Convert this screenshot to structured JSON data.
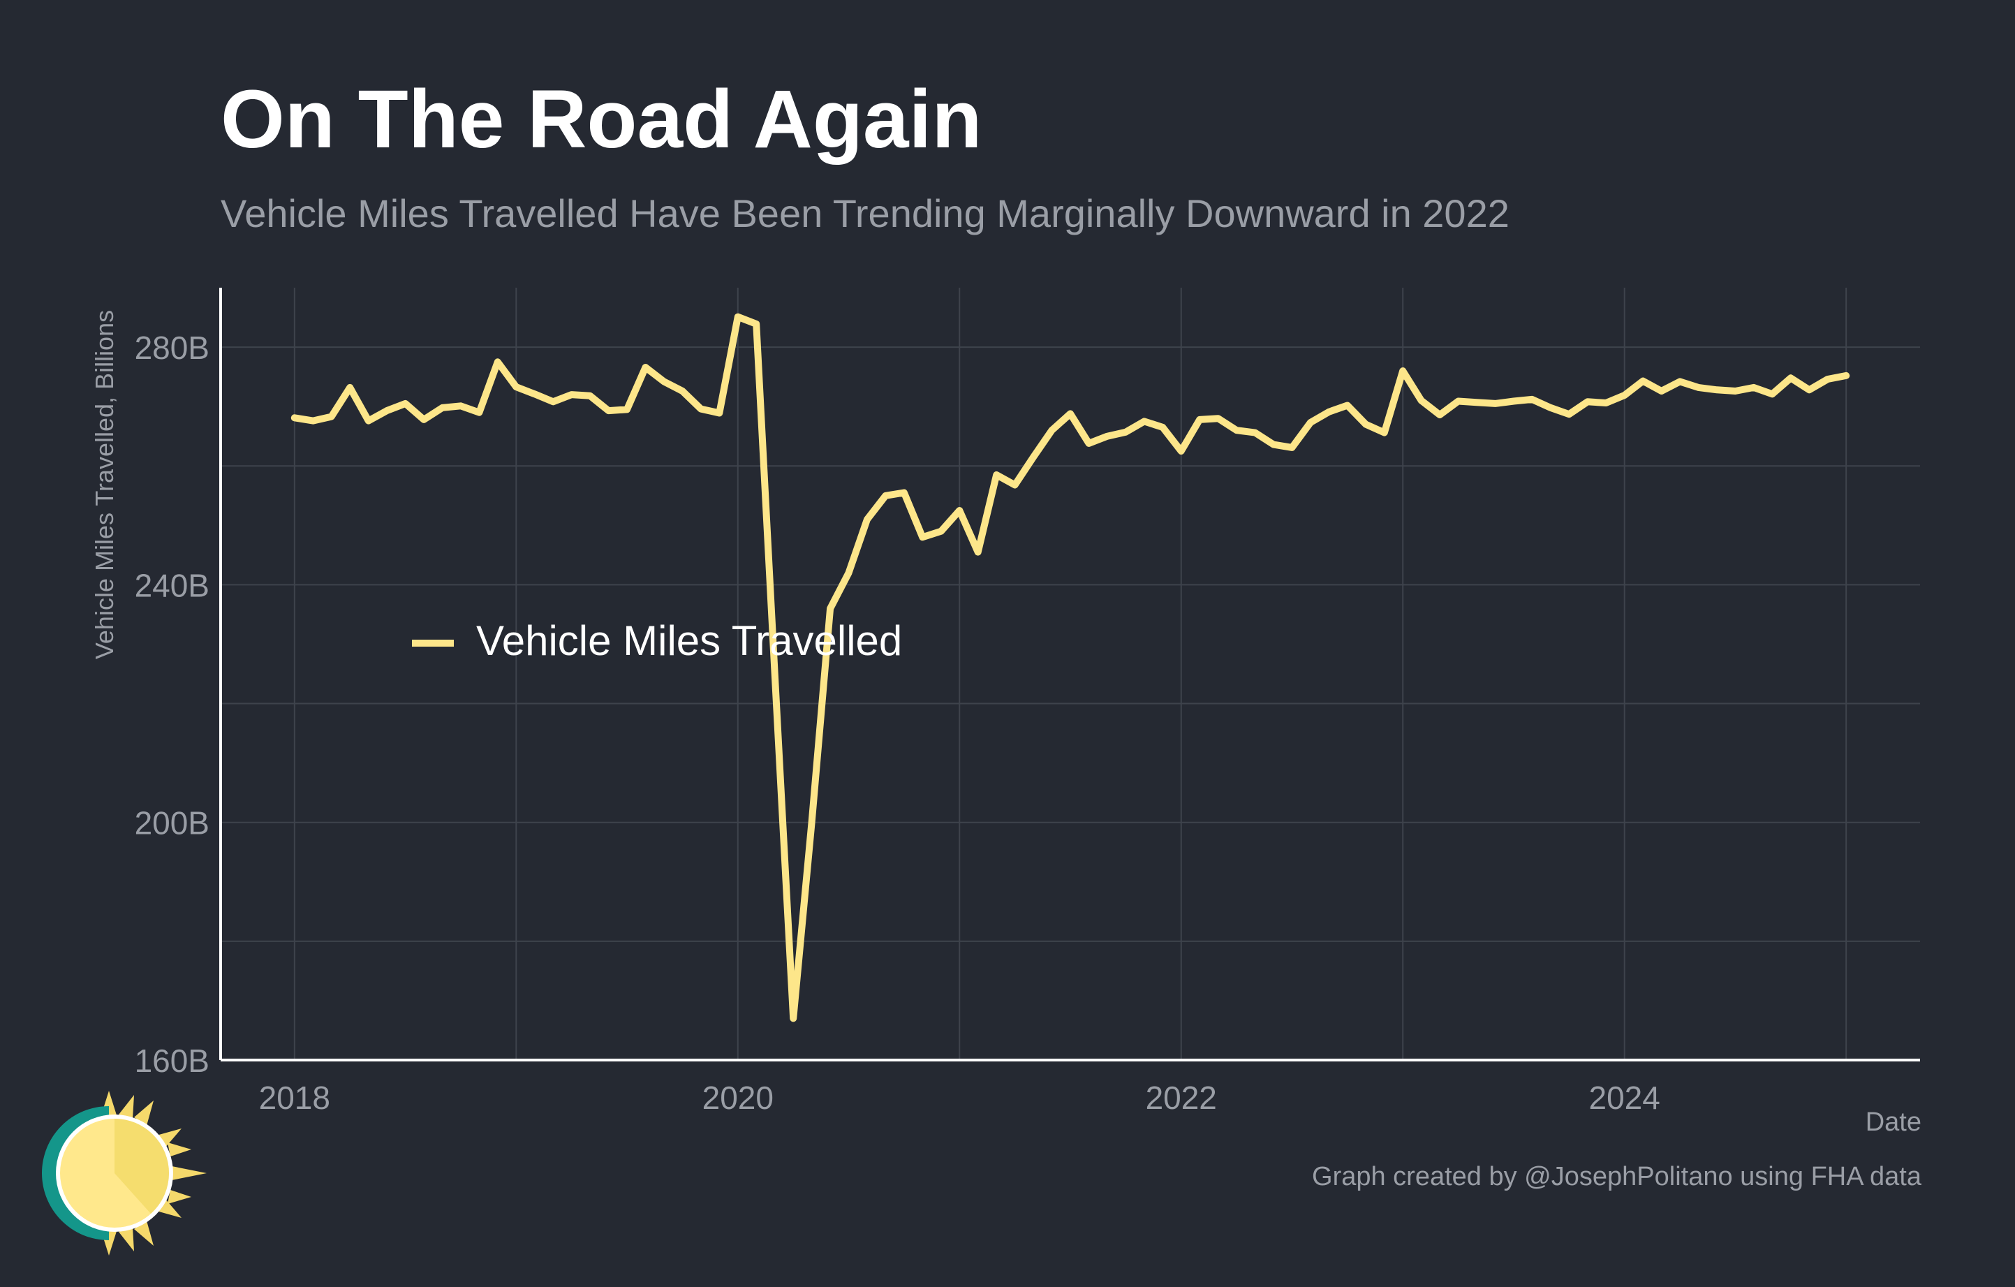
{
  "title": "On The Road Again",
  "subtitle": "Vehicle Miles Travelled Have Been Trending Marginally Downward in 2022",
  "caption": "Graph created by @JosephPolitano using FHA data",
  "colors": {
    "background": "#252932",
    "line": "#fde68a",
    "grid": "#3e434c",
    "axis": "#ffffff",
    "muted_text": "#9a9ea6"
  },
  "chart_data": {
    "type": "line",
    "title": "On The Road Again",
    "subtitle": "Vehicle Miles Travelled Have Been Trending Marginally Downward in 2022",
    "xlabel": "Date",
    "ylabel": "Vehicle Miles Travelled, Billions",
    "x_range": [
      "2017-09",
      "2025-05"
    ],
    "ylim": [
      160,
      290
    ],
    "x_ticks": [
      "2018",
      "2020",
      "2022",
      "2024"
    ],
    "x_tick_values": [
      "2018-01",
      "2020-01",
      "2022-01",
      "2024-01"
    ],
    "y_ticks": [
      "160B",
      "200B",
      "240B",
      "280B"
    ],
    "y_tick_values": [
      160,
      200,
      240,
      280
    ],
    "grid": true,
    "legend": {
      "position": "middle-left",
      "entries": [
        "Vehicle Miles Travelled"
      ]
    },
    "series": [
      {
        "name": "Vehicle Miles Travelled",
        "x": [
          "2018-01",
          "2018-02",
          "2018-03",
          "2018-04",
          "2018-05",
          "2018-06",
          "2018-07",
          "2018-08",
          "2018-09",
          "2018-10",
          "2018-11",
          "2018-12",
          "2019-01",
          "2019-02",
          "2019-03",
          "2019-04",
          "2019-05",
          "2019-06",
          "2019-07",
          "2019-08",
          "2019-09",
          "2019-10",
          "2019-11",
          "2019-12",
          "2020-01",
          "2020-02",
          "2020-03",
          "2020-04",
          "2020-05",
          "2020-06",
          "2020-07",
          "2020-08",
          "2020-09",
          "2020-10",
          "2020-11",
          "2020-12",
          "2021-01",
          "2021-02",
          "2021-03",
          "2021-04",
          "2021-05",
          "2021-06",
          "2021-07",
          "2021-08",
          "2021-09",
          "2021-10",
          "2021-11",
          "2021-12",
          "2022-01",
          "2022-02",
          "2022-03",
          "2022-04",
          "2022-05",
          "2022-06",
          "2022-07",
          "2022-08",
          "2022-09",
          "2022-10",
          "2022-11",
          "2022-12",
          "2023-01",
          "2023-02",
          "2023-03",
          "2023-04",
          "2023-05",
          "2023-06",
          "2023-07",
          "2023-08",
          "2023-09",
          "2023-10",
          "2023-11",
          "2023-12",
          "2024-01",
          "2024-02",
          "2024-03",
          "2024-04",
          "2024-05",
          "2024-06",
          "2024-07",
          "2024-08",
          "2024-09",
          "2024-10",
          "2024-11",
          "2024-12",
          "2025-01"
        ],
        "values": [
          268.1,
          267.6,
          268.3,
          273.2,
          267.6,
          269.3,
          270.5,
          267.8,
          269.8,
          270.1,
          269.0,
          277.5,
          273.3,
          272.1,
          270.8,
          272.0,
          271.8,
          269.3,
          269.5,
          276.6,
          274.2,
          272.6,
          269.6,
          268.9,
          285.1,
          283.9,
          225.0,
          167.0,
          200.0,
          236.0,
          242.0,
          251.0,
          255.0,
          255.5,
          248.0,
          249.0,
          252.5,
          245.5,
          258.5,
          256.8,
          261.5,
          266.0,
          268.8,
          263.8,
          265.0,
          265.7,
          267.5,
          266.5,
          262.5,
          267.8,
          268.0,
          266.0,
          265.6,
          263.6,
          263.1,
          267.3,
          269.1,
          270.2,
          267.0,
          265.6,
          276.0,
          271.0,
          268.6,
          270.9,
          270.7,
          270.5,
          270.9,
          271.2,
          269.8,
          268.7,
          270.8,
          270.6,
          271.9,
          274.3,
          272.6,
          274.2,
          273.2,
          272.8,
          272.6,
          273.2,
          272.1,
          274.8,
          272.8,
          274.6,
          275.2
        ]
      }
    ]
  }
}
